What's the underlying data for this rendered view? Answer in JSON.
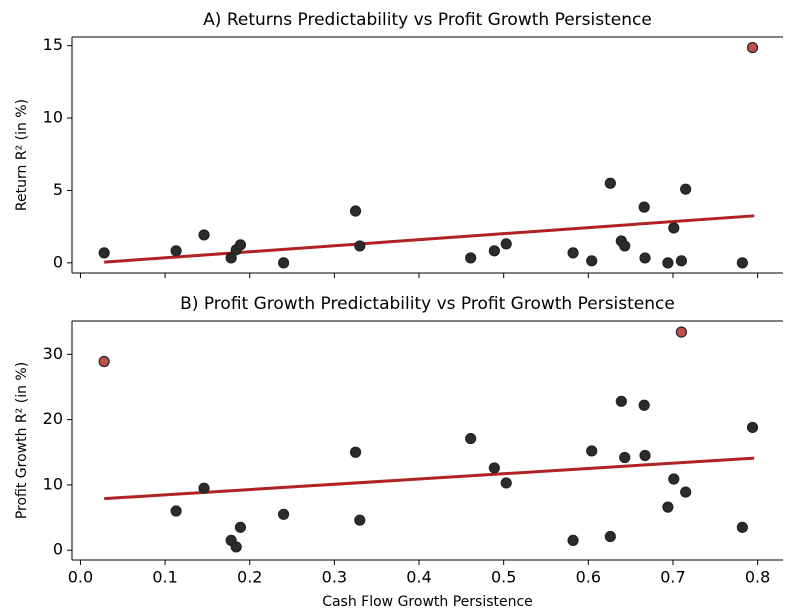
{
  "chart_data": [
    {
      "type": "scatter",
      "title": "A) Returns Predictability vs Profit Growth Persistence",
      "ylabel": "Return R² (in %)",
      "x": [
        0.028,
        0.113,
        0.146,
        0.178,
        0.184,
        0.189,
        0.24,
        0.325,
        0.33,
        0.461,
        0.489,
        0.503,
        0.582,
        0.604,
        0.626,
        0.639,
        0.643,
        0.666,
        0.667,
        0.694,
        0.701,
        0.71,
        0.715,
        0.782,
        0.794
      ],
      "values": [
        0.69,
        0.83,
        1.93,
        0.34,
        0.9,
        1.24,
        0.0,
        3.58,
        1.17,
        0.34,
        0.83,
        1.31,
        0.69,
        0.14,
        5.5,
        1.51,
        1.17,
        3.85,
        0.34,
        0.0,
        2.41,
        0.14,
        5.09,
        0.0,
        14.87
      ],
      "color": "#2b2b2b",
      "highlight": [
        24
      ],
      "highlight_color": "#c0504d",
      "fit": {
        "x": [
          0.028,
          0.796
        ],
        "y": [
          0.05,
          3.25
        ]
      },
      "fit_color": "#b22222",
      "xlim": [
        -0.01,
        0.83
      ],
      "xticks": [
        0,
        0.1,
        0.2,
        0.3,
        0.4,
        0.5,
        0.6,
        0.7,
        0.8
      ],
      "ylim": [
        -0.7,
        15.6
      ],
      "yticks": [
        0,
        5,
        10,
        15
      ]
    },
    {
      "type": "scatter",
      "title": "B) Profit Growth Predictability vs Profit Growth Persistence",
      "ylabel": "Profit Growth R² (in %)",
      "xlabel": "Cash Flow Growth Persistence",
      "x": [
        0.028,
        0.113,
        0.146,
        0.178,
        0.184,
        0.189,
        0.24,
        0.325,
        0.33,
        0.461,
        0.489,
        0.503,
        0.582,
        0.604,
        0.626,
        0.639,
        0.643,
        0.666,
        0.667,
        0.694,
        0.701,
        0.71,
        0.715,
        0.782,
        0.794
      ],
      "values": [
        28.9,
        6.0,
        9.5,
        1.5,
        0.5,
        3.5,
        5.5,
        15.0,
        4.6,
        17.1,
        12.6,
        10.3,
        1.5,
        15.2,
        2.1,
        22.8,
        14.2,
        22.2,
        14.5,
        6.6,
        10.9,
        33.4,
        8.9,
        3.5,
        18.8
      ],
      "color": "#2b2b2b",
      "highlight": [
        0,
        21
      ],
      "highlight_color": "#c0504d",
      "fit": {
        "x": [
          0.028,
          0.796
        ],
        "y": [
          7.9,
          14.1
        ]
      },
      "fit_color": "#b22222",
      "xlim": [
        -0.01,
        0.83
      ],
      "xticks": [
        {
          "value": 0,
          "label": "0.0"
        },
        0.1,
        0.2,
        0.3,
        0.4,
        0.5,
        0.6,
        0.7,
        0.8
      ],
      "ylim": [
        -1.5,
        35.1
      ],
      "yticks": [
        0,
        10,
        20,
        30
      ]
    }
  ]
}
